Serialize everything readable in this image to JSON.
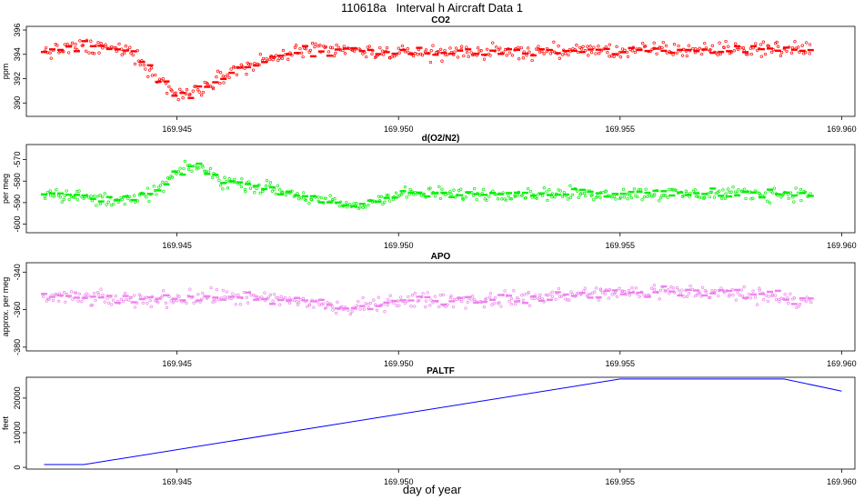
{
  "title": "110618a   Interval h Aircraft Data 1",
  "xlabel": "day of year",
  "chart_data": [
    {
      "type": "scatter",
      "title": "CO2",
      "ylabel": "ppm",
      "color": "#ff0000",
      "xlim": [
        169.9416,
        169.9603
      ],
      "ylim": [
        388.9,
        396.3
      ],
      "x_ticks": [
        "169.945",
        "169.950",
        "169.955",
        "169.960"
      ],
      "y_ticks": [
        "390",
        "392",
        "394",
        "396"
      ],
      "x_range_data": [
        169.942,
        169.9593
      ],
      "approx_profile": {
        "x": [
          169.942,
          169.943,
          169.944,
          169.9445,
          169.945,
          169.9455,
          169.946,
          169.947,
          169.948,
          169.95,
          169.955,
          169.9593
        ],
        "y": [
          394.3,
          394.6,
          394.2,
          392.2,
          390.6,
          391.2,
          392.3,
          393.5,
          394.4,
          394.1,
          394.3,
          394.5
        ]
      }
    },
    {
      "type": "scatter",
      "title": "d(O2/N2)",
      "ylabel": "per meg",
      "color": "#00ee00",
      "xlim": [
        169.9416,
        169.9603
      ],
      "ylim": [
        -604,
        -563
      ],
      "x_ticks": [
        "169.945",
        "169.950",
        "169.955",
        "169.960"
      ],
      "y_ticks": [
        "-600",
        "-590",
        "-580",
        "-570"
      ],
      "x_range_data": [
        169.942,
        169.9593
      ],
      "approx_profile": {
        "x": [
          169.942,
          169.943,
          169.944,
          169.9445,
          169.945,
          169.9455,
          169.946,
          169.947,
          169.948,
          169.949,
          169.95,
          169.955,
          169.9593
        ],
        "y": [
          -585,
          -588,
          -589,
          -585,
          -576,
          -573,
          -580,
          -583,
          -588,
          -592,
          -586,
          -586,
          -586
        ]
      }
    },
    {
      "type": "scatter",
      "title": "APO",
      "ylabel": "approx. per meg",
      "color": "#ee82ee",
      "xlim": [
        169.9416,
        169.9603
      ],
      "ylim": [
        -382,
        -335
      ],
      "x_ticks": [
        "169.945",
        "169.950",
        "169.955",
        "169.960"
      ],
      "y_ticks": [
        "-380",
        "-360",
        "-340"
      ],
      "x_range_data": [
        169.942,
        169.9593
      ],
      "approx_profile": {
        "x": [
          169.942,
          169.944,
          169.946,
          169.948,
          169.9488,
          169.95,
          169.952,
          169.954,
          169.956,
          169.958,
          169.9593
        ],
        "y": [
          -353,
          -355,
          -353,
          -356,
          -360,
          -355,
          -355,
          -352,
          -350,
          -352,
          -355
        ]
      }
    },
    {
      "type": "line",
      "title": "PALTF",
      "ylabel": "feet",
      "color": "#0000ff",
      "xlim": [
        169.9416,
        169.9603
      ],
      "ylim": [
        -500,
        26000
      ],
      "x_ticks": [
        "169.945",
        "169.950",
        "169.955",
        "169.960"
      ],
      "y_ticks": [
        "0",
        "10000",
        "20000"
      ],
      "x": [
        169.942,
        169.9429,
        169.955,
        169.9587,
        169.96
      ],
      "y": [
        800,
        800,
        25500,
        25500,
        22000
      ]
    }
  ]
}
